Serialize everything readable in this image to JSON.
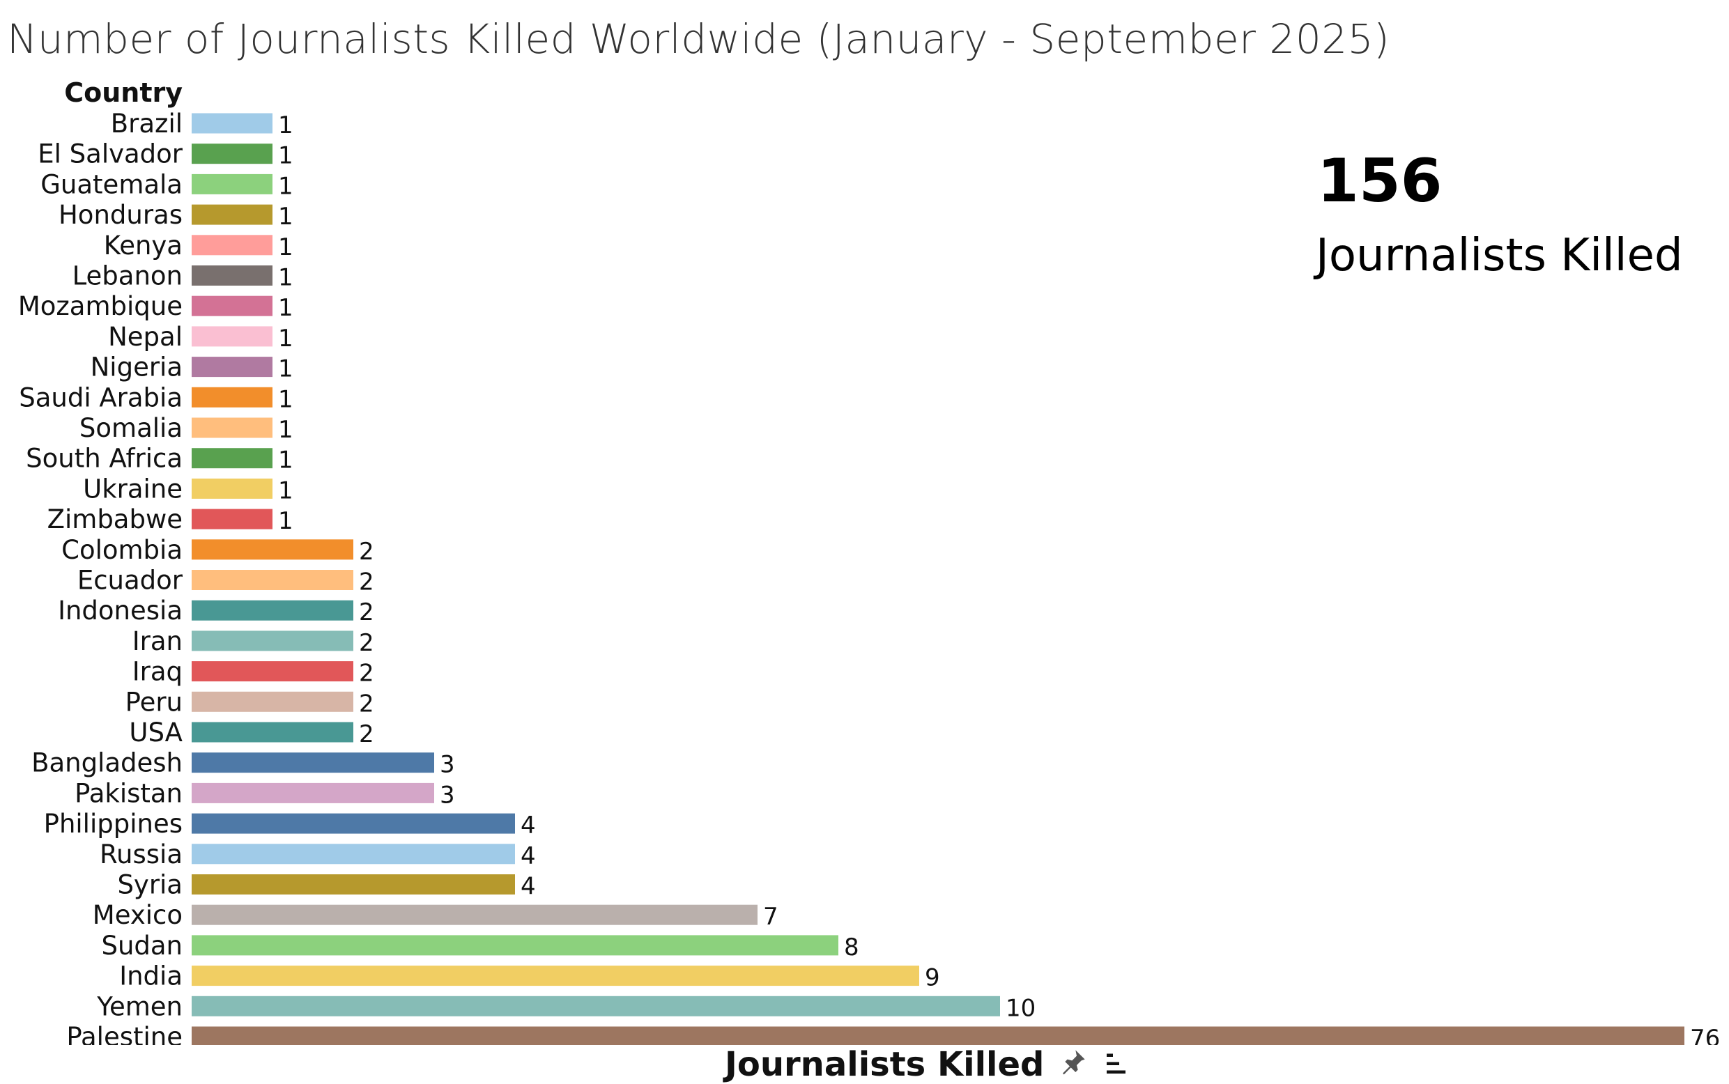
{
  "title": "Number of Journalists Killed Worldwide (January - September 2025)",
  "kpi": {
    "value": "156",
    "label": "Journalists Killed"
  },
  "chart_data": {
    "type": "bar",
    "orientation": "horizontal",
    "title": "Number of Journalists Killed Worldwide (January - September 2025)",
    "ylabel": "Country",
    "xlabel": "Journalists Killed",
    "categories": [
      "Brazil",
      "El Salvador",
      "Guatemala",
      "Honduras",
      "Kenya",
      "Lebanon",
      "Mozambique",
      "Nepal",
      "Nigeria",
      "Saudi Arabia",
      "Somalia",
      "South Africa",
      "Ukraine",
      "Zimbabwe",
      "Colombia",
      "Ecuador",
      "Indonesia",
      "Iran",
      "Iraq",
      "Peru",
      "USA",
      "Bangladesh",
      "Pakistan",
      "Philippines",
      "Russia",
      "Syria",
      "Mexico",
      "Sudan",
      "India",
      "Yemen",
      "Palestine"
    ],
    "values": [
      1,
      1,
      1,
      1,
      1,
      1,
      1,
      1,
      1,
      1,
      1,
      1,
      1,
      1,
      2,
      2,
      2,
      2,
      2,
      2,
      2,
      3,
      3,
      4,
      4,
      4,
      7,
      8,
      9,
      10,
      76
    ],
    "colors": [
      "#a0cbe8",
      "#59a14f",
      "#8cd17d",
      "#b6992d",
      "#ff9d9a",
      "#79706e",
      "#d37295",
      "#fabfd2",
      "#b07aa1",
      "#f28e2b",
      "#ffbe7d",
      "#59a14f",
      "#f1ce63",
      "#e15759",
      "#f28e2b",
      "#ffbe7d",
      "#499894",
      "#86bcb6",
      "#e15759",
      "#d7b5a6",
      "#499894",
      "#4e79a7",
      "#d4a6c8",
      "#4e79a7",
      "#a0cbe8",
      "#b6992d",
      "#bab0ac",
      "#8cd17d",
      "#f1ce63",
      "#86bcb6",
      "#9d7660"
    ],
    "grid": false,
    "legend": "none"
  },
  "axis": {
    "title": "Journalists Killed",
    "icons": [
      "pin-icon",
      "sort-icon"
    ]
  }
}
